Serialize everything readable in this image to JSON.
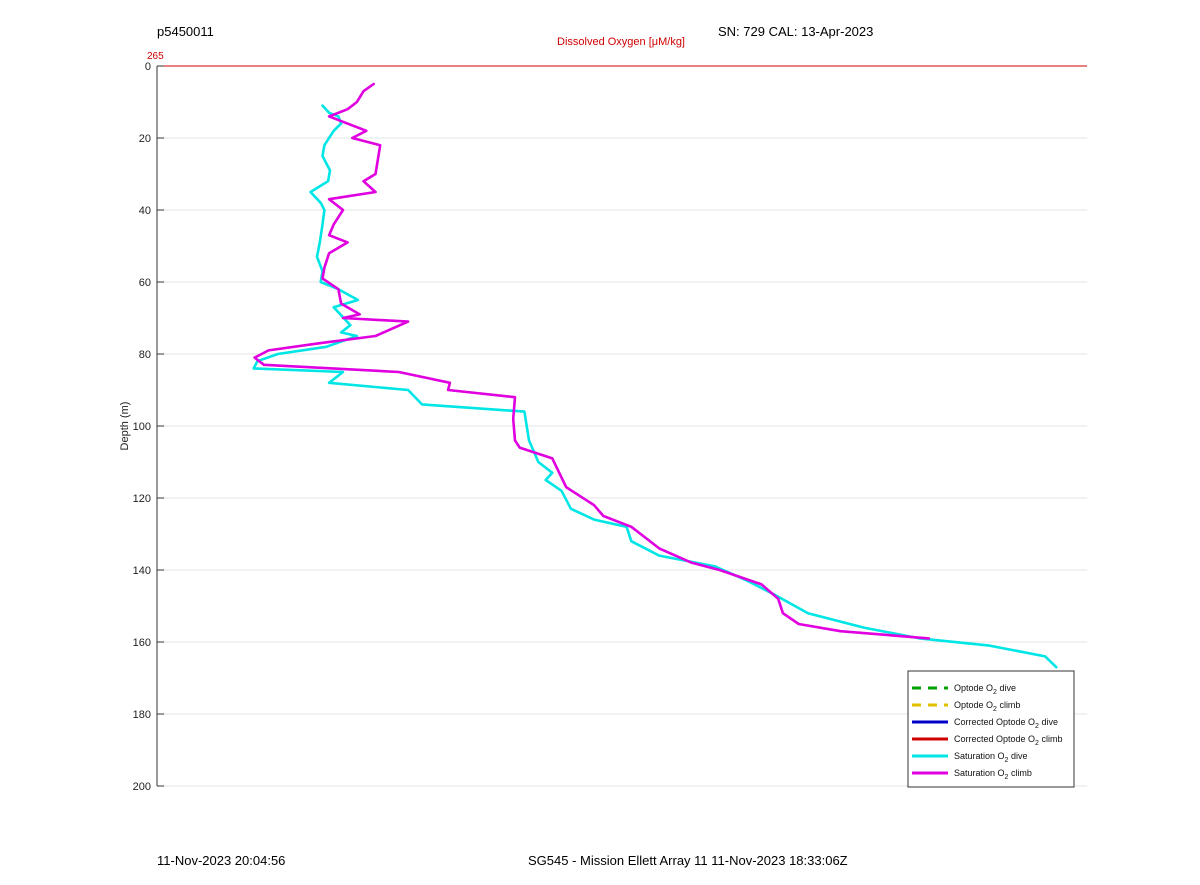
{
  "header": {
    "profile_id": "p5450011",
    "sensor_info": "SN: 729  CAL: 13-Apr-2023"
  },
  "footer": {
    "timestamp": "11-Nov-2023 20:04:56",
    "mission": "SG545 - Mission Ellett Array 11 11-Nov-2023 18:33:06Z"
  },
  "chart_data": {
    "type": "line",
    "title": "Dissolved Oxygen [μM/kg]",
    "xlabel": "Dissolved Oxygen [μM/kg]",
    "ylabel": "Depth (m)",
    "top_axis_tick": "265",
    "ylim": [
      0,
      200
    ],
    "y_reversed": true,
    "y_ticks": [
      0,
      20,
      40,
      60,
      80,
      100,
      120,
      140,
      160,
      180,
      200
    ],
    "grid": true,
    "legend_position": "bottom-right",
    "colors": {
      "axis_top": "#d00000",
      "grid": "#e6e6e6"
    },
    "series": [
      {
        "name": "Optode O2 dive",
        "color": "#00a000",
        "dashed": true,
        "values": []
      },
      {
        "name": "Optode O2 climb",
        "color": "#e0c000",
        "dashed": true,
        "values": []
      },
      {
        "name": "Corrected Optode O2 dive",
        "color": "#0000c8",
        "dashed": false,
        "values": []
      },
      {
        "name": "Corrected Optode O2 climb",
        "color": "#d00000",
        "dashed": false,
        "values": []
      },
      {
        "name": "Saturation O2 dive",
        "color": "#00e5e5",
        "dashed": false,
        "values": [
          [
            0.178,
            11
          ],
          [
            0.185,
            13
          ],
          [
            0.195,
            14
          ],
          [
            0.198,
            16
          ],
          [
            0.19,
            18
          ],
          [
            0.18,
            22
          ],
          [
            0.178,
            25
          ],
          [
            0.186,
            29
          ],
          [
            0.184,
            32
          ],
          [
            0.165,
            35
          ],
          [
            0.176,
            38
          ],
          [
            0.18,
            40
          ],
          [
            0.178,
            44
          ],
          [
            0.175,
            49
          ],
          [
            0.172,
            53
          ],
          [
            0.178,
            57
          ],
          [
            0.176,
            60
          ],
          [
            0.195,
            62
          ],
          [
            0.216,
            65
          ],
          [
            0.19,
            67
          ],
          [
            0.208,
            72
          ],
          [
            0.198,
            74
          ],
          [
            0.215,
            75
          ],
          [
            0.182,
            78
          ],
          [
            0.13,
            80
          ],
          [
            0.108,
            82
          ],
          [
            0.104,
            84
          ],
          [
            0.2,
            85
          ],
          [
            0.185,
            88
          ],
          [
            0.27,
            90
          ],
          [
            0.285,
            94
          ],
          [
            0.395,
            96
          ],
          [
            0.4,
            104
          ],
          [
            0.41,
            110
          ],
          [
            0.425,
            113
          ],
          [
            0.418,
            115
          ],
          [
            0.435,
            118
          ],
          [
            0.445,
            123
          ],
          [
            0.47,
            126
          ],
          [
            0.505,
            128
          ],
          [
            0.51,
            132
          ],
          [
            0.54,
            136
          ],
          [
            0.6,
            139
          ],
          [
            0.635,
            143
          ],
          [
            0.665,
            147
          ],
          [
            0.7,
            152
          ],
          [
            0.76,
            156
          ],
          [
            0.82,
            159
          ],
          [
            0.895,
            161
          ],
          [
            0.955,
            164
          ],
          [
            0.967,
            167
          ]
        ]
      },
      {
        "name": "Saturation O2 climb",
        "color": "#e000e0",
        "dashed": false,
        "values": [
          [
            0.233,
            5
          ],
          [
            0.222,
            7
          ],
          [
            0.215,
            10
          ],
          [
            0.205,
            12
          ],
          [
            0.185,
            14
          ],
          [
            0.205,
            16
          ],
          [
            0.225,
            18
          ],
          [
            0.21,
            20
          ],
          [
            0.24,
            22
          ],
          [
            0.235,
            30
          ],
          [
            0.222,
            32
          ],
          [
            0.235,
            35
          ],
          [
            0.185,
            37
          ],
          [
            0.2,
            40
          ],
          [
            0.19,
            44
          ],
          [
            0.185,
            47
          ],
          [
            0.205,
            49
          ],
          [
            0.185,
            52
          ],
          [
            0.18,
            56
          ],
          [
            0.178,
            59
          ],
          [
            0.195,
            62
          ],
          [
            0.198,
            66
          ],
          [
            0.218,
            69
          ],
          [
            0.2,
            70
          ],
          [
            0.27,
            71
          ],
          [
            0.235,
            75
          ],
          [
            0.175,
            77
          ],
          [
            0.12,
            79
          ],
          [
            0.105,
            81
          ],
          [
            0.115,
            83
          ],
          [
            0.26,
            85
          ],
          [
            0.315,
            88
          ],
          [
            0.313,
            90
          ],
          [
            0.385,
            92
          ],
          [
            0.383,
            98
          ],
          [
            0.385,
            104
          ],
          [
            0.39,
            106
          ],
          [
            0.425,
            109
          ],
          [
            0.44,
            117
          ],
          [
            0.47,
            122
          ],
          [
            0.48,
            125
          ],
          [
            0.51,
            128
          ],
          [
            0.54,
            134
          ],
          [
            0.575,
            138
          ],
          [
            0.605,
            140
          ],
          [
            0.65,
            144
          ],
          [
            0.668,
            148
          ],
          [
            0.673,
            152
          ],
          [
            0.69,
            155
          ],
          [
            0.735,
            157
          ],
          [
            0.83,
            159
          ]
        ]
      }
    ]
  }
}
